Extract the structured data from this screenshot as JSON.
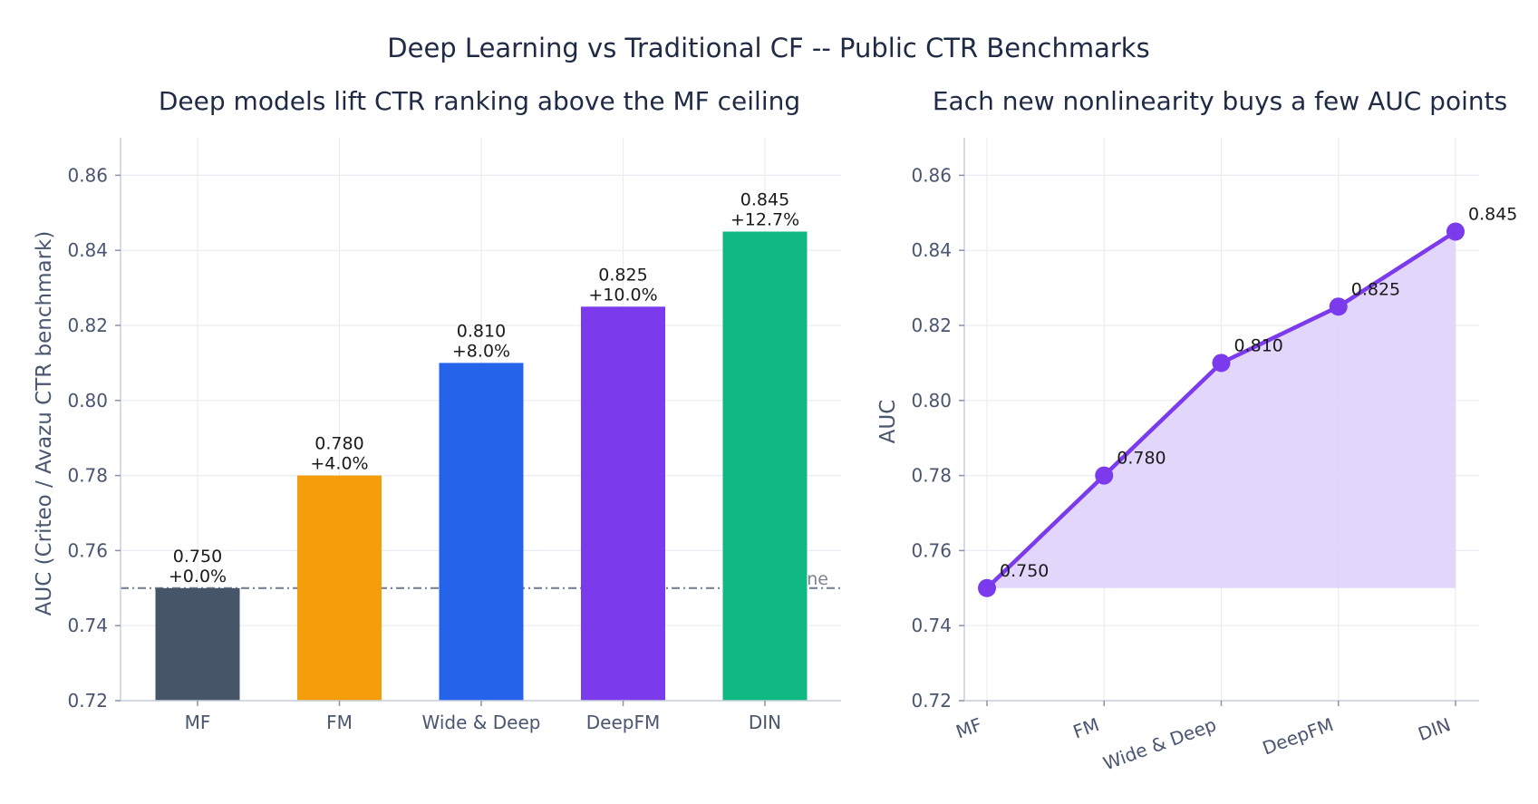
{
  "title": "Deep Learning vs Traditional CF -- Public CTR Benchmarks",
  "chart_data": [
    {
      "type": "bar",
      "title": "Deep models lift CTR ranking above the MF ceiling",
      "ylabel": "AUC (Criteo / Avazu CTR benchmark)",
      "xlabel": "",
      "categories": [
        "MF",
        "FM",
        "Wide & Deep",
        "DeepFM",
        "DIN"
      ],
      "values": [
        0.75,
        0.78,
        0.81,
        0.825,
        0.845
      ],
      "value_labels": [
        "0.750",
        "0.780",
        "0.810",
        "0.825",
        "0.845"
      ],
      "lift_labels": [
        "+0.0%",
        "+4.0%",
        "+8.0%",
        "+10.0%",
        "+12.7%"
      ],
      "colors": [
        "#475569",
        "#f59e0b",
        "#2563eb",
        "#7c3aed",
        "#10b981"
      ],
      "ylim": [
        0.72,
        0.87
      ],
      "yticks": [
        0.72,
        0.74,
        0.76,
        0.78,
        0.8,
        0.82,
        0.84,
        0.86
      ],
      "ytick_labels": [
        "0.72",
        "0.74",
        "0.76",
        "0.78",
        "0.80",
        "0.82",
        "0.84",
        "0.86"
      ],
      "grid": true,
      "baseline": {
        "value": 0.75,
        "label": "MF baseline",
        "color": "#7a8394"
      }
    },
    {
      "type": "line",
      "title": "Each new nonlinearity buys a few AUC points",
      "ylabel": "AUC",
      "xlabel": "",
      "categories": [
        "MF",
        "FM",
        "Wide & Deep",
        "DeepFM",
        "DIN"
      ],
      "values": [
        0.75,
        0.78,
        0.81,
        0.825,
        0.845
      ],
      "value_labels": [
        "0.750",
        "0.780",
        "0.810",
        "0.825",
        "0.845"
      ],
      "color": "#7c3aed",
      "fill_color": "#ddd0fa",
      "fill_base": 0.75,
      "ylim": [
        0.72,
        0.87
      ],
      "yticks": [
        0.72,
        0.74,
        0.76,
        0.78,
        0.8,
        0.82,
        0.84,
        0.86
      ],
      "ytick_labels": [
        "0.72",
        "0.74",
        "0.76",
        "0.78",
        "0.80",
        "0.82",
        "0.84",
        "0.86"
      ],
      "grid": true,
      "xtick_rotation": -20
    }
  ]
}
